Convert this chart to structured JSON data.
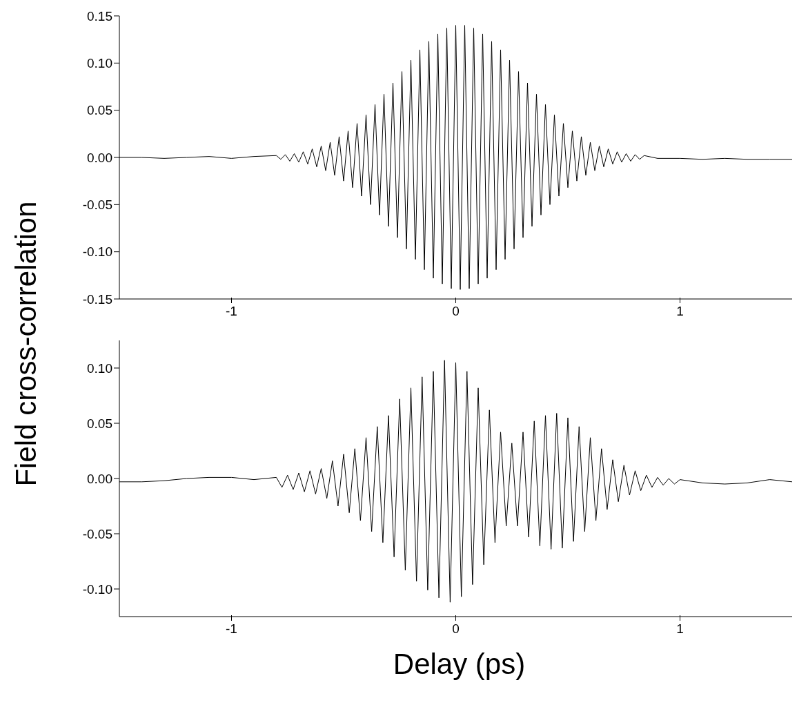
{
  "chart_data": [
    {
      "type": "line",
      "ylabel": "Field cross-correlation",
      "marker": "none",
      "xlim": [
        -1.5,
        1.5
      ],
      "xticks": [
        -1,
        0,
        1
      ],
      "ylim": [
        -0.15,
        0.15
      ],
      "yticks": [
        {
          "value": -0.15,
          "label": "-0.15"
        },
        {
          "value": -0.1,
          "label": "-0.10"
        },
        {
          "value": -0.05,
          "label": "-0.05"
        },
        {
          "value": 0,
          "label": "0.00"
        },
        {
          "value": 0.05,
          "label": "0.05"
        },
        {
          "value": 0.1,
          "label": "0.10"
        },
        {
          "value": 0.15,
          "label": "0.15"
        }
      ],
      "series": [
        {
          "color": "#000000",
          "x": [
            -1.5,
            -1.4,
            -1.3,
            -1.2,
            -1.1,
            -1.0,
            -0.9,
            -0.8,
            -0.78,
            -0.76,
            -0.74,
            -0.72,
            -0.7,
            -0.68,
            -0.66,
            -0.64,
            -0.62,
            -0.6,
            -0.58,
            -0.56,
            -0.54,
            -0.52,
            -0.5,
            -0.48,
            -0.46,
            -0.44,
            -0.42,
            -0.4,
            -0.38,
            -0.36,
            -0.34,
            -0.32,
            -0.3,
            -0.28,
            -0.26,
            -0.24,
            -0.22,
            -0.2,
            -0.18,
            -0.16,
            -0.14,
            -0.12,
            -0.1,
            -0.08,
            -0.06,
            -0.04,
            -0.02,
            0,
            0.02,
            0.04,
            0.06,
            0.08,
            0.1,
            0.12,
            0.14,
            0.16,
            0.18,
            0.2,
            0.22,
            0.24,
            0.26,
            0.28,
            0.3,
            0.32,
            0.34,
            0.36,
            0.38,
            0.4,
            0.42,
            0.44,
            0.46,
            0.48,
            0.5,
            0.52,
            0.54,
            0.56,
            0.58,
            0.6,
            0.62,
            0.64,
            0.66,
            0.68,
            0.7,
            0.72,
            0.74,
            0.76,
            0.78,
            0.8,
            0.82,
            0.84,
            0.9,
            1.0,
            1.1,
            1.2,
            1.3,
            1.4,
            1.5
          ],
          "values": [
            0,
            0,
            -0.001,
            0,
            0.001,
            -0.001,
            0.001,
            0.002,
            -0.002,
            0.003,
            -0.004,
            0.004,
            -0.005,
            0.006,
            -0.007,
            0.009,
            -0.01,
            0.012,
            -0.014,
            0.016,
            -0.019,
            0.022,
            -0.025,
            0.028,
            -0.032,
            0.036,
            -0.041,
            0.045,
            -0.05,
            0.056,
            -0.061,
            0.067,
            -0.073,
            0.079,
            -0.085,
            0.091,
            -0.097,
            0.103,
            -0.108,
            0.114,
            -0.119,
            0.123,
            -0.128,
            0.131,
            -0.134,
            0.137,
            -0.139,
            0.14,
            -0.14,
            0.14,
            -0.139,
            0.137,
            -0.134,
            0.131,
            -0.128,
            0.123,
            -0.119,
            0.114,
            -0.108,
            0.103,
            -0.097,
            0.091,
            -0.085,
            0.079,
            -0.073,
            0.067,
            -0.061,
            0.056,
            -0.05,
            0.045,
            -0.041,
            0.036,
            -0.032,
            0.028,
            -0.025,
            0.022,
            -0.019,
            0.016,
            -0.014,
            0.012,
            -0.01,
            0.009,
            -0.007,
            0.006,
            -0.005,
            0.004,
            -0.004,
            0.003,
            -0.002,
            0.002,
            -0.001,
            -0.001,
            -0.002,
            -0.001,
            -0.002,
            -0.002,
            -0.002
          ]
        }
      ]
    },
    {
      "type": "line",
      "xlabel": "Delay (ps)",
      "marker": "none",
      "xlim": [
        -1.5,
        1.5
      ],
      "xticks": [
        -1,
        0,
        1
      ],
      "ylim": [
        -0.125,
        0.125
      ],
      "yticks": [
        {
          "value": -0.1,
          "label": "-0.10"
        },
        {
          "value": -0.05,
          "label": "-0.05"
        },
        {
          "value": 0,
          "label": "0.00"
        },
        {
          "value": 0.05,
          "label": "0.05"
        },
        {
          "value": 0.1,
          "label": "0.10"
        }
      ],
      "series": [
        {
          "color": "#000000",
          "x": [
            -1.5,
            -1.4,
            -1.3,
            -1.2,
            -1.1,
            -1.0,
            -0.9,
            -0.8,
            -0.775,
            -0.75,
            -0.725,
            -0.7,
            -0.675,
            -0.65,
            -0.625,
            -0.6,
            -0.575,
            -0.55,
            -0.525,
            -0.5,
            -0.475,
            -0.45,
            -0.425,
            -0.4,
            -0.375,
            -0.35,
            -0.325,
            -0.3,
            -0.275,
            -0.25,
            -0.225,
            -0.2,
            -0.175,
            -0.15,
            -0.125,
            -0.1,
            -0.075,
            -0.05,
            -0.025,
            0,
            0.025,
            0.05,
            0.075,
            0.1,
            0.125,
            0.15,
            0.175,
            0.2,
            0.225,
            0.25,
            0.275,
            0.3,
            0.325,
            0.35,
            0.375,
            0.4,
            0.425,
            0.45,
            0.475,
            0.5,
            0.525,
            0.55,
            0.575,
            0.6,
            0.625,
            0.65,
            0.675,
            0.7,
            0.725,
            0.75,
            0.775,
            0.8,
            0.825,
            0.85,
            0.875,
            0.9,
            0.925,
            0.95,
            0.975,
            1.0,
            1.1,
            1.2,
            1.3,
            1.4,
            1.5
          ],
          "values": [
            -0.003,
            -0.003,
            -0.002,
            0,
            0.001,
            0.001,
            -0.001,
            0.001,
            -0.008,
            0.003,
            -0.01,
            0.005,
            -0.012,
            0.007,
            -0.014,
            0.009,
            -0.018,
            0.016,
            -0.025,
            0.022,
            -0.031,
            0.027,
            -0.038,
            0.037,
            -0.048,
            0.047,
            -0.058,
            0.057,
            -0.071,
            0.072,
            -0.083,
            0.082,
            -0.093,
            0.092,
            -0.101,
            0.097,
            -0.108,
            0.107,
            -0.112,
            0.105,
            -0.107,
            0.097,
            -0.096,
            0.082,
            -0.078,
            0.062,
            -0.058,
            0.042,
            -0.043,
            0.032,
            -0.043,
            0.042,
            -0.053,
            0.052,
            -0.061,
            0.057,
            -0.064,
            0.059,
            -0.063,
            0.055,
            -0.057,
            0.047,
            -0.048,
            0.037,
            -0.038,
            0.027,
            -0.028,
            0.017,
            -0.021,
            0.012,
            -0.015,
            0.007,
            -0.011,
            0.003,
            -0.008,
            0.001,
            -0.006,
            0,
            -0.005,
            -0.001,
            -0.004,
            -0.005,
            -0.004,
            -0.001,
            -0.003
          ]
        }
      ]
    }
  ]
}
